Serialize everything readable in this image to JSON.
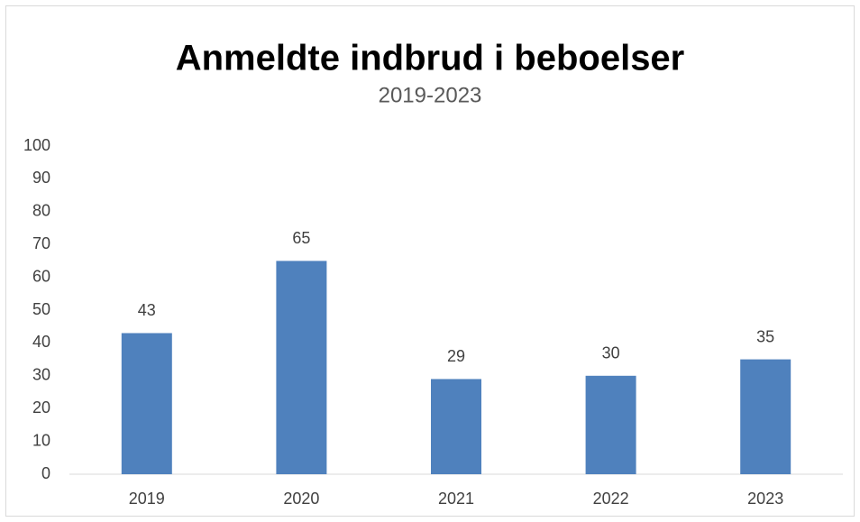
{
  "chart_data": {
    "type": "bar",
    "title": "Anmeldte indbrud i beboelser",
    "subtitle": "2019-2023",
    "categories": [
      "2019",
      "2020",
      "2021",
      "2022",
      "2023"
    ],
    "values": [
      43,
      65,
      29,
      30,
      35
    ],
    "color": "#4f81bd",
    "ylim": [
      0,
      100
    ],
    "yticks": [
      0,
      10,
      20,
      30,
      40,
      50,
      60,
      70,
      80,
      90,
      100
    ],
    "grid": false,
    "data_labels": true
  }
}
